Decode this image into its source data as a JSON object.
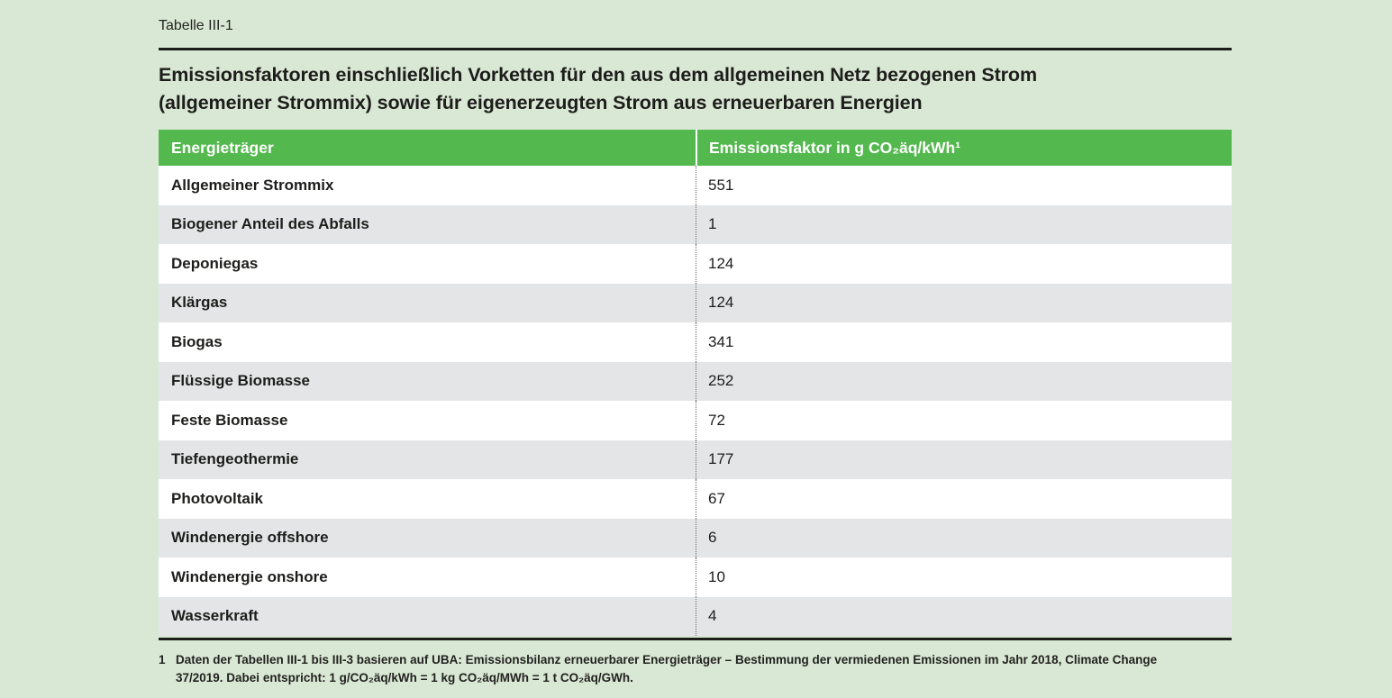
{
  "page": {
    "table_label": "Tabelle III-1",
    "title_line1": "Emissionsfaktoren einschließlich Vorketten für den aus dem allgemeinen Netz bezogenen Strom",
    "title_line2": "(allgemeiner Strommix) sowie für eigenerzeugten Strom aus erneuerbaren Energien"
  },
  "table": {
    "columns": {
      "energy_source": "Energieträger",
      "emission_factor": "Emissionsfaktor in g CO₂äq/kWh¹"
    },
    "rows": [
      {
        "label": "Allgemeiner Strommix",
        "value": "551"
      },
      {
        "label": "Biogener Anteil des Abfalls",
        "value": "1"
      },
      {
        "label": "Deponiegas",
        "value": "124"
      },
      {
        "label": "Klärgas",
        "value": "124"
      },
      {
        "label": "Biogas",
        "value": "341"
      },
      {
        "label": "Flüssige Biomasse",
        "value": "252"
      },
      {
        "label": "Feste Biomasse",
        "value": "72"
      },
      {
        "label": "Tiefengeothermie",
        "value": "177"
      },
      {
        "label": "Photovoltaik",
        "value": "67"
      },
      {
        "label": "Windenergie offshore",
        "value": "6"
      },
      {
        "label": "Windenergie onshore",
        "value": "10"
      },
      {
        "label": "Wasserkraft",
        "value": "4"
      }
    ]
  },
  "footnote": {
    "marker": "1",
    "line1": "Daten der Tabellen III-1 bis III-3 basieren auf UBA: Emissionsbilanz erneuerbarer Energieträger – Bestimmung der vermiedenen Emissionen im Jahr 2018, Climate Change",
    "line2": "37/2019. Dabei entspricht: 1 g/CO₂äq/kWh = 1 kg CO₂äq/MWh = 1 t CO₂äq/GWh."
  },
  "colors": {
    "background": "#d9e8d4",
    "header_bg": "#53b84e",
    "header_text": "#ffffff",
    "row_alt_bg": "#e4e5e7",
    "rule": "#1d1d1b"
  }
}
